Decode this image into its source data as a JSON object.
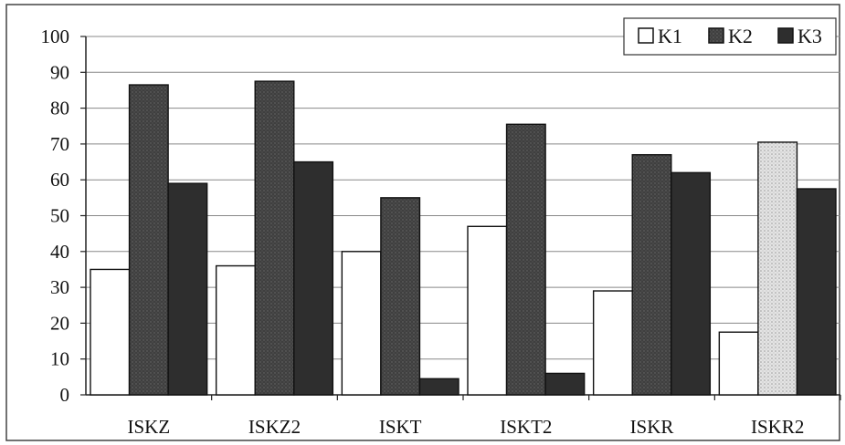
{
  "chart_data": {
    "type": "bar",
    "categories": [
      "ISKZ",
      "ISKZ2",
      "ISKT",
      "ISKT2",
      "ISKR",
      "ISKR2"
    ],
    "series": [
      {
        "name": "K1",
        "values": [
          35,
          36,
          40,
          47,
          29,
          17.5
        ]
      },
      {
        "name": "K2",
        "values": [
          86.5,
          87.5,
          55,
          75.5,
          67,
          70.5
        ]
      },
      {
        "name": "K3",
        "values": [
          59,
          65,
          4.5,
          6,
          62,
          57.5
        ]
      }
    ],
    "title": "",
    "xlabel": "",
    "ylabel": "",
    "ylim": [
      0,
      100
    ],
    "yticks": [
      0,
      10,
      20,
      30,
      40,
      50,
      60,
      70,
      80,
      90,
      100
    ],
    "grid": true,
    "legend_position": "top-right"
  },
  "colors": {
    "K1": "#ffffff",
    "K2": "#3a3a3a",
    "K3": "#2e2e2e",
    "grid": "#888888",
    "bar_stroke": "#111111"
  }
}
